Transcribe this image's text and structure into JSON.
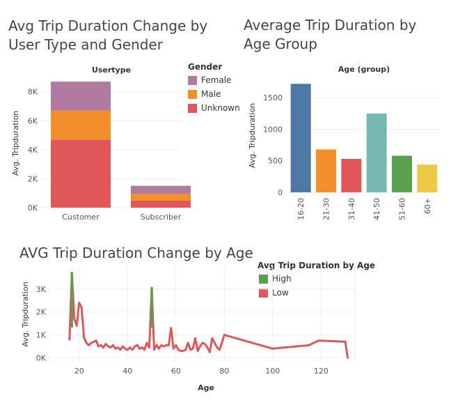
{
  "colors": {
    "female": "#b07aa1",
    "male": "#f28e2b",
    "unknown": "#e15759",
    "high": "#59a14f",
    "low": "#e15759",
    "grid": "#eeeeee",
    "axis_text": "#555555"
  },
  "chart_data": [
    {
      "id": "usertype-gender",
      "type": "bar",
      "stacked": true,
      "title": "Avg Trip Duration Change by User Type and Gender",
      "column_header": "Usertype",
      "categories": [
        "Customer",
        "Subscriber"
      ],
      "series": [
        {
          "name": "Unknown",
          "values": [
            4700,
            480
          ]
        },
        {
          "name": "Male",
          "values": [
            2000,
            480
          ]
        },
        {
          "name": "Female",
          "values": [
            2000,
            550
          ]
        }
      ],
      "ylabel": "Avg. Tripduration",
      "ylim": [
        0,
        8900
      ],
      "yticks": [
        0,
        2000,
        4000,
        6000,
        8000
      ],
      "ytick_labels": [
        "0K",
        "2K",
        "4K",
        "6K",
        "8K"
      ],
      "legend": {
        "title": "Gender",
        "items": [
          "Female",
          "Male",
          "Unknown"
        ],
        "placement": "top-right"
      }
    },
    {
      "id": "age-group",
      "type": "bar",
      "title": "Average Trip Duration by Age Group",
      "column_header": "Age (group)",
      "categories": [
        "16-20",
        "21-30",
        "31-40",
        "41-50",
        "51-60",
        "60+"
      ],
      "values": [
        1720,
        680,
        530,
        1250,
        580,
        440
      ],
      "bar_colors": [
        "#4e79a7",
        "#f28e2b",
        "#e15759",
        "#76b7b2",
        "#59a14f",
        "#edc948"
      ],
      "ylabel": "Avg. Tripduration",
      "ylim": [
        0,
        1800
      ],
      "yticks": [
        0,
        500,
        1000,
        1500
      ],
      "ytick_labels": [
        "0",
        "500",
        "1000",
        "1500"
      ]
    },
    {
      "id": "duration-by-age",
      "type": "line",
      "title": "AVG Trip Duration Change by Age",
      "xlabel": "Age",
      "ylabel": "Avg. Tripduration",
      "xlim": [
        8,
        134
      ],
      "ylim": [
        -200,
        4000
      ],
      "xticks": [
        20,
        40,
        60,
        80,
        100,
        120
      ],
      "yticks": [
        0,
        1000,
        2000,
        3000
      ],
      "ytick_labels": [
        "0K",
        "1K",
        "2K",
        "3K"
      ],
      "x": [
        16,
        17,
        18,
        19,
        20,
        21,
        22,
        23,
        24,
        25,
        26,
        27,
        28,
        29,
        30,
        31,
        32,
        33,
        34,
        35,
        36,
        37,
        38,
        39,
        40,
        41,
        42,
        43,
        44,
        45,
        46,
        47,
        48,
        49,
        50,
        51,
        52,
        53,
        54,
        55,
        56,
        57,
        58,
        59,
        60,
        61,
        62,
        63,
        64,
        65,
        66,
        67,
        68,
        69,
        70,
        71,
        72,
        73,
        74,
        75,
        76,
        77,
        78,
        79,
        80,
        100,
        115,
        119,
        130,
        131
      ],
      "y": [
        800,
        3700,
        1700,
        1400,
        2400,
        2200,
        900,
        650,
        550,
        650,
        700,
        750,
        500,
        550,
        450,
        600,
        500,
        450,
        550,
        400,
        450,
        350,
        500,
        400,
        350,
        450,
        350,
        500,
        550,
        400,
        450,
        350,
        650,
        450,
        3050,
        350,
        550,
        400,
        550,
        500,
        550,
        550,
        1300,
        400,
        550,
        350,
        300,
        300,
        350,
        650,
        350,
        400,
        850,
        300,
        500,
        650,
        600,
        450,
        250,
        850,
        650,
        450,
        350,
        650,
        1000,
        400,
        550,
        750,
        700,
        0
      ],
      "high_threshold": 2500,
      "legend": {
        "title": "Avg Trip Duration by Age",
        "items": [
          "High",
          "Low"
        ],
        "placement": "top-right"
      }
    }
  ]
}
